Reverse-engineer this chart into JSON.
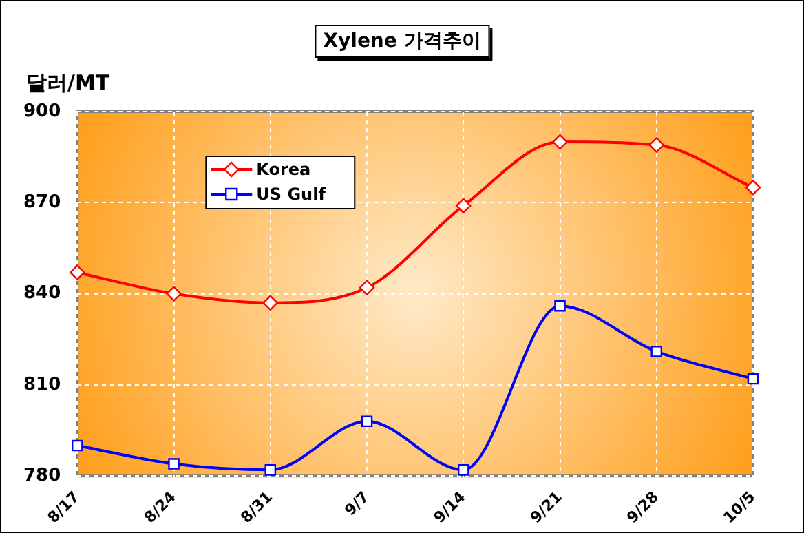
{
  "chart_data": {
    "type": "line",
    "title": "Xylene 가격추이",
    "ylabel": "달러/MT",
    "categories": [
      "8/17",
      "8/24",
      "8/31",
      "9/7",
      "9/14",
      "9/21",
      "9/28",
      "10/5"
    ],
    "series": [
      {
        "name": "Korea",
        "color": "#ff0000",
        "marker": "diamond",
        "values": [
          847,
          840,
          837,
          842,
          869,
          890,
          889,
          875
        ]
      },
      {
        "name": "US Gulf",
        "color": "#0000ff",
        "marker": "square",
        "values": [
          790,
          784,
          782,
          798,
          782,
          836,
          821,
          812
        ]
      }
    ],
    "ylim": [
      780,
      900
    ],
    "yticks": [
      780,
      810,
      840,
      870,
      900
    ],
    "grid": true,
    "legend": "top left",
    "line_style": "solid"
  }
}
